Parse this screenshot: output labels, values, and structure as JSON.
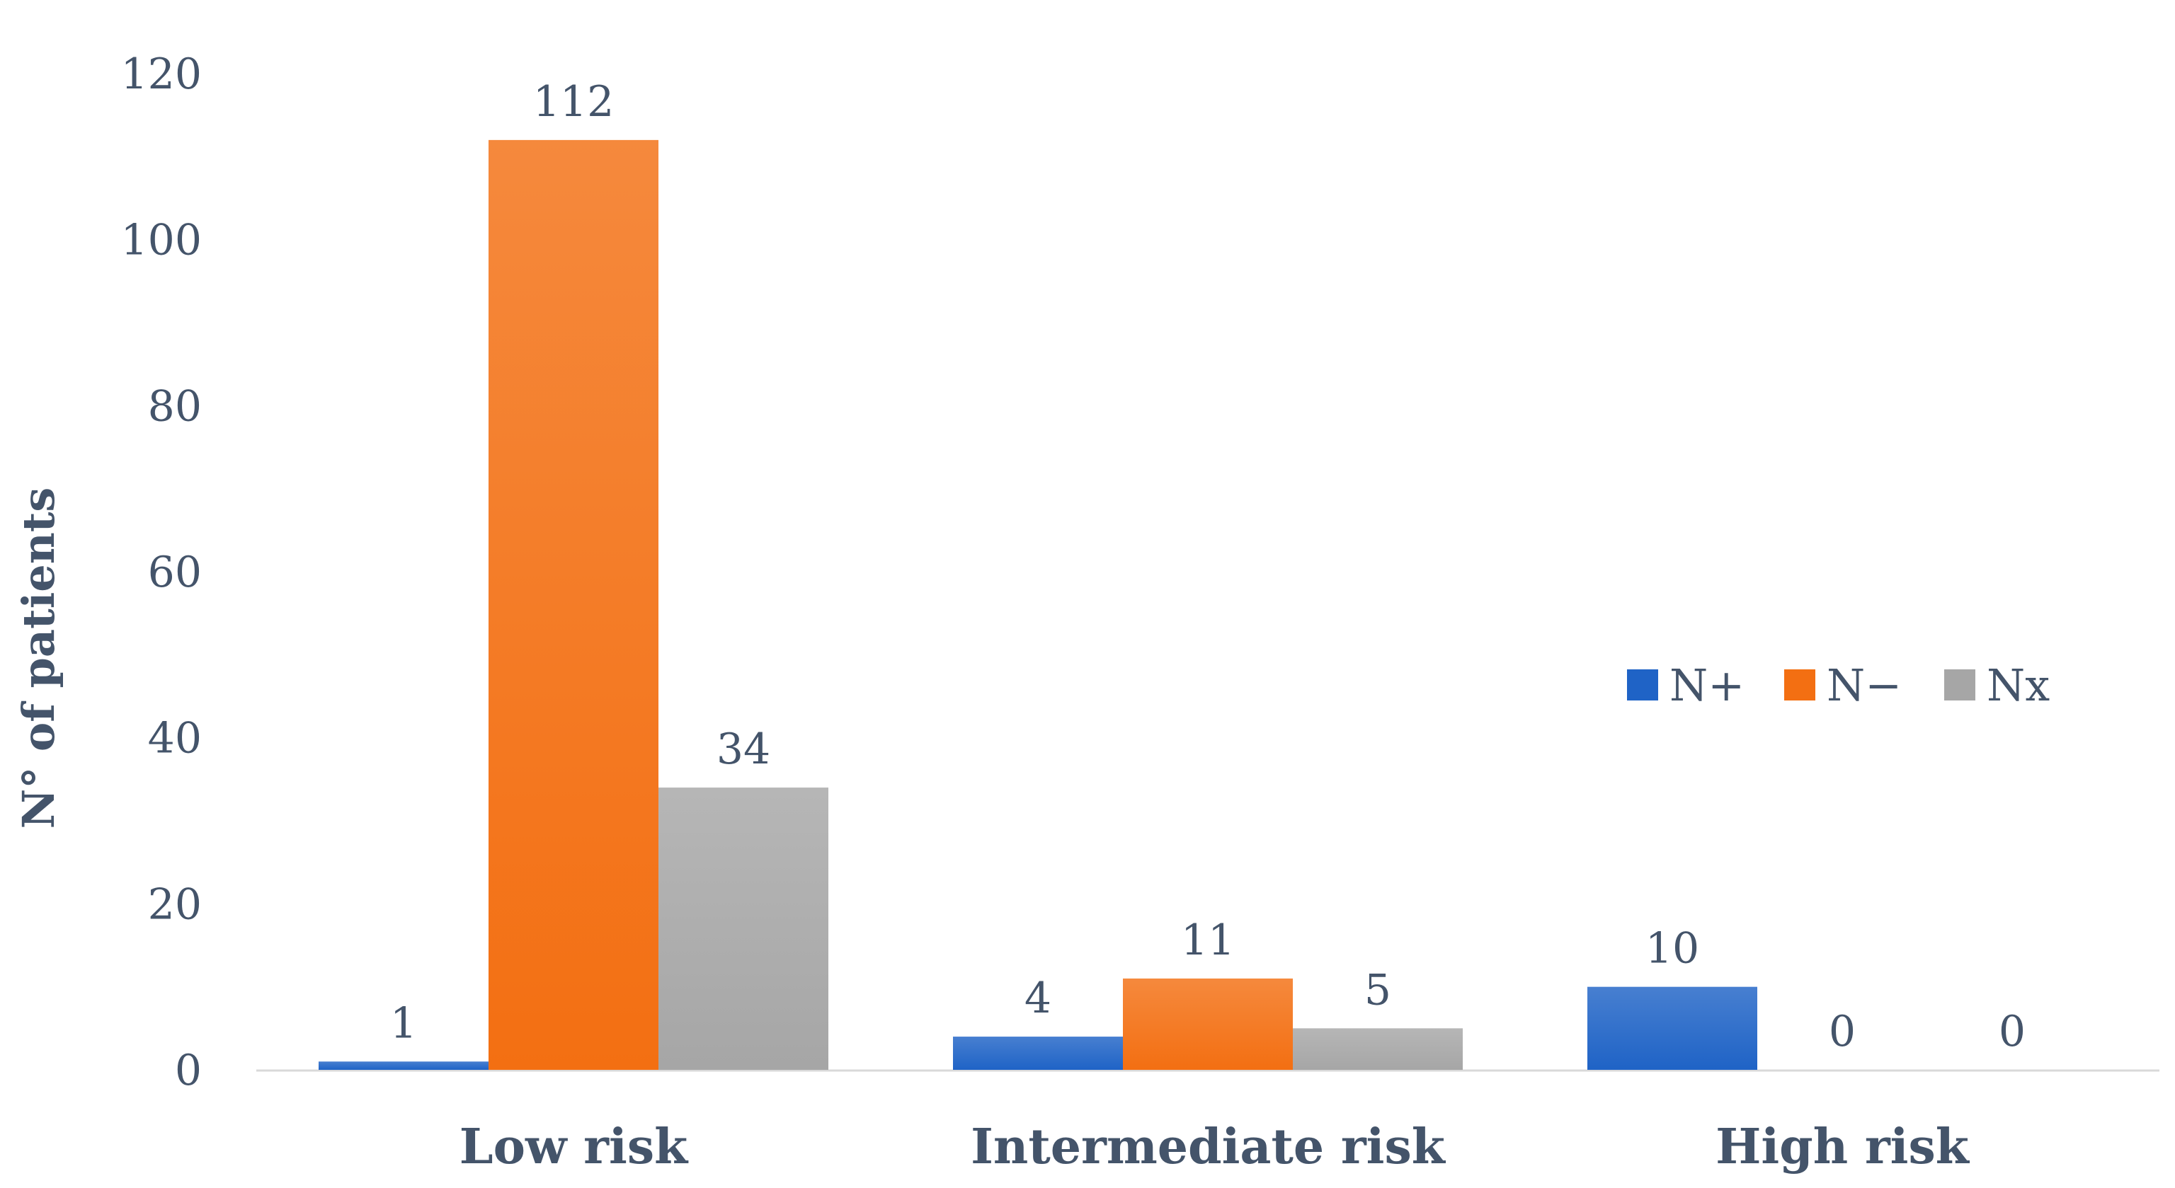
{
  "chart_data": {
    "type": "bar",
    "categories": [
      "Low risk",
      "Intermediate risk",
      "High risk"
    ],
    "series": [
      {
        "name": "N+",
        "values": [
          1,
          4,
          10
        ],
        "color": "#1f63c6"
      },
      {
        "name": "N−",
        "values": [
          112,
          11,
          0
        ],
        "color": "#f36f12"
      },
      {
        "name": "Nx",
        "values": [
          34,
          5,
          0
        ],
        "color": "#a6a6a6"
      }
    ],
    "ylabel": "N° of patients",
    "xlabel": "",
    "ylim": [
      0,
      120
    ],
    "yticks": [
      0,
      20,
      40,
      60,
      80,
      100,
      120
    ],
    "grid": false,
    "legend_position": "right-middle",
    "data_labels": true
  }
}
